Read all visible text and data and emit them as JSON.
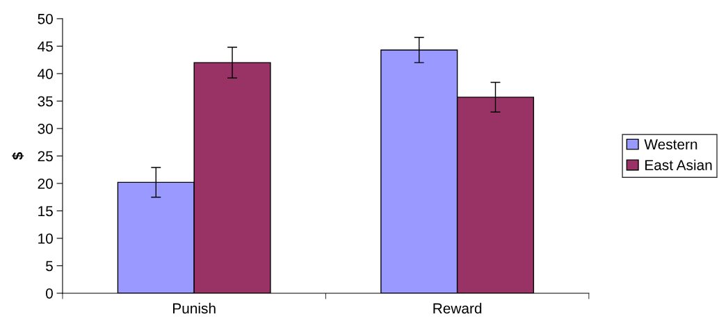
{
  "chart_data": {
    "type": "bar",
    "ylabel": "$",
    "categories": [
      "Punish",
      "Reward"
    ],
    "series": [
      {
        "name": "Western",
        "color": "#9999ff",
        "values": [
          20.2,
          44.3
        ],
        "errors": [
          2.7,
          2.3
        ]
      },
      {
        "name": "East Asian",
        "color": "#993366",
        "values": [
          42.0,
          35.7
        ],
        "errors": [
          2.8,
          2.7
        ]
      }
    ],
    "ylim": [
      0,
      50
    ],
    "yticks": [
      0,
      5,
      10,
      15,
      20,
      25,
      30,
      35,
      40,
      45,
      50
    ],
    "grid": false,
    "legend": "right"
  }
}
